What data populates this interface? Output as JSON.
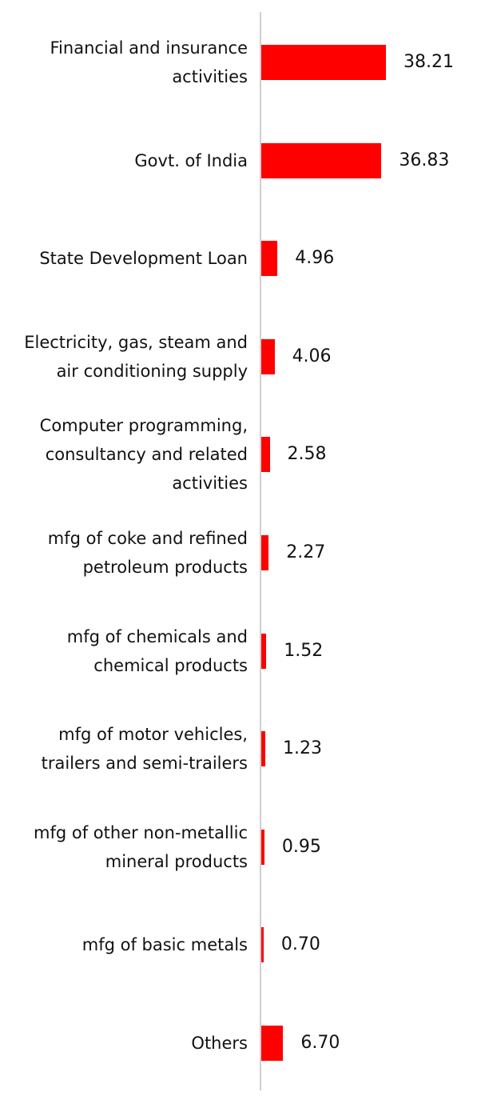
{
  "chart_data": {
    "type": "bar",
    "orientation": "horizontal",
    "bar_color": "#ff0000",
    "axis_color": "#cfcfcf",
    "categories": [
      "Financial and insurance\nactivities",
      "Govt. of India",
      "State Development Loan",
      "Electricity, gas, steam and\nair conditioning supply",
      "Computer programming,\nconsultancy and related\nactivities",
      "mfg of coke and refined\npetroleum products",
      "mfg of chemicals and\nchemical products",
      "mfg of motor vehicles,\ntrailers and semi-trailers",
      "mfg of other non-metallic\nmineral products",
      "mfg of basic metals",
      "Others"
    ],
    "values": [
      38.21,
      36.83,
      4.96,
      4.06,
      2.58,
      2.27,
      1.52,
      1.23,
      0.95,
      0.7,
      6.7
    ],
    "value_labels": [
      "38.21",
      "36.83",
      "4.96",
      "4.06",
      "2.58",
      "2.27",
      "1.52",
      "1.23",
      "0.95",
      "0.70",
      "6.70"
    ]
  }
}
